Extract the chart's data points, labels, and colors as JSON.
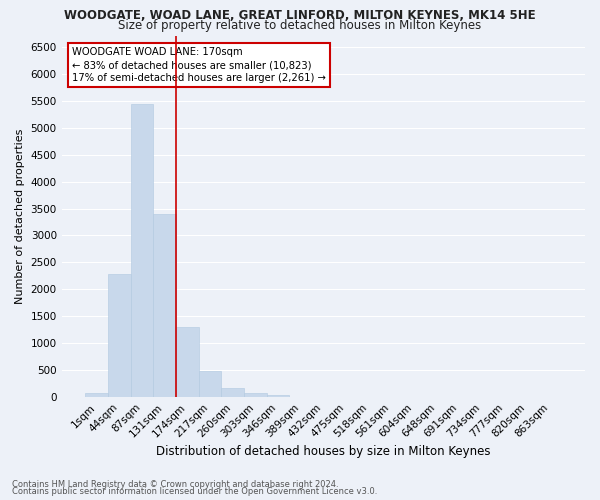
{
  "title1": "WOODGATE, WOAD LANE, GREAT LINFORD, MILTON KEYNES, MK14 5HE",
  "title2": "Size of property relative to detached houses in Milton Keynes",
  "xlabel": "Distribution of detached houses by size in Milton Keynes",
  "ylabel": "Number of detached properties",
  "footer1": "Contains HM Land Registry data © Crown copyright and database right 2024.",
  "footer2": "Contains public sector information licensed under the Open Government Licence v3.0.",
  "annotation_title": "WOODGATE WOAD LANE: 170sqm",
  "annotation_line1": "← 83% of detached houses are smaller (10,823)",
  "annotation_line2": "17% of semi-detached houses are larger (2,261) →",
  "bar_color": "#c8d8eb",
  "bar_edge_color": "#b0c8e0",
  "vline_color": "#cc0000",
  "vline_bin_index": 4,
  "categories": [
    "1sqm",
    "44sqm",
    "87sqm",
    "131sqm",
    "174sqm",
    "217sqm",
    "260sqm",
    "303sqm",
    "346sqm",
    "389sqm",
    "432sqm",
    "475sqm",
    "518sqm",
    "561sqm",
    "604sqm",
    "648sqm",
    "691sqm",
    "734sqm",
    "777sqm",
    "820sqm",
    "863sqm"
  ],
  "values": [
    70,
    2280,
    5430,
    3400,
    1300,
    480,
    165,
    80,
    50,
    5,
    2,
    2,
    1,
    0,
    0,
    0,
    0,
    0,
    0,
    0,
    0
  ],
  "ylim": [
    0,
    6700
  ],
  "yticks": [
    0,
    500,
    1000,
    1500,
    2000,
    2500,
    3000,
    3500,
    4000,
    4500,
    5000,
    5500,
    6000,
    6500
  ],
  "background_color": "#edf1f8",
  "plot_background": "#edf1f8",
  "grid_color": "#ffffff",
  "annotation_box_color": "#ffffff",
  "annotation_box_edge": "#cc0000",
  "title1_fontsize": 8.5,
  "title2_fontsize": 8.5,
  "ylabel_fontsize": 8.0,
  "xlabel_fontsize": 8.5,
  "tick_fontsize": 7.5,
  "footer_fontsize": 6.0
}
